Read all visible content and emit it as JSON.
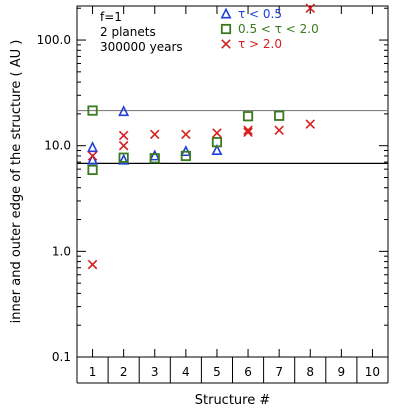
{
  "chart_data": {
    "type": "scatter",
    "xlabel": "Structure #",
    "ylabel": "inner and outer edge of the structure ( AU )",
    "x_ticks": [
      "1",
      "2",
      "3",
      "4",
      "5",
      "6",
      "7",
      "8",
      "9",
      "10"
    ],
    "xlim": [
      0.5,
      10.5
    ],
    "ylim": [
      0.1,
      210
    ],
    "y_scale": "log",
    "y_ticks": [
      0.1,
      1.0,
      10.0,
      100.0
    ],
    "y_tick_labels": [
      "0.1",
      "1.0",
      "10.0",
      "100.0"
    ],
    "annotations": [
      "f=1",
      "2 planets",
      "300000 years"
    ],
    "hlines": [
      {
        "y": 21.5,
        "color": "#808080"
      },
      {
        "y": 6.8,
        "color": "#000000"
      }
    ],
    "series": [
      {
        "name": "τ < 0.5",
        "marker": "triangle",
        "color": "#1f3fd6",
        "points": [
          [
            1,
            9.6
          ],
          [
            1,
            7.3
          ],
          [
            2,
            21.0
          ],
          [
            2,
            7.3
          ],
          [
            3,
            8.0
          ],
          [
            4,
            8.8
          ],
          [
            5,
            9.0
          ]
        ]
      },
      {
        "name": "0.5 < τ < 2.0",
        "marker": "square",
        "color": "#3a7a1e",
        "points": [
          [
            1,
            21.5
          ],
          [
            1,
            5.9
          ],
          [
            2,
            7.7
          ],
          [
            3,
            7.6
          ],
          [
            4,
            8.0
          ],
          [
            5,
            10.8
          ],
          [
            6,
            19.0
          ],
          [
            7,
            19.2
          ]
        ]
      },
      {
        "name": "τ > 2.0",
        "marker": "x",
        "color": "#d62020",
        "points": [
          [
            1,
            8.0
          ],
          [
            1,
            0.75
          ],
          [
            2,
            12.5
          ],
          [
            2,
            10.0
          ],
          [
            3,
            12.8
          ],
          [
            4,
            12.8
          ],
          [
            5,
            13.2
          ],
          [
            6,
            14.0
          ],
          [
            6,
            13.4
          ],
          [
            7,
            14.0
          ],
          [
            8,
            16.0
          ],
          [
            8,
            200.0
          ]
        ]
      }
    ]
  }
}
